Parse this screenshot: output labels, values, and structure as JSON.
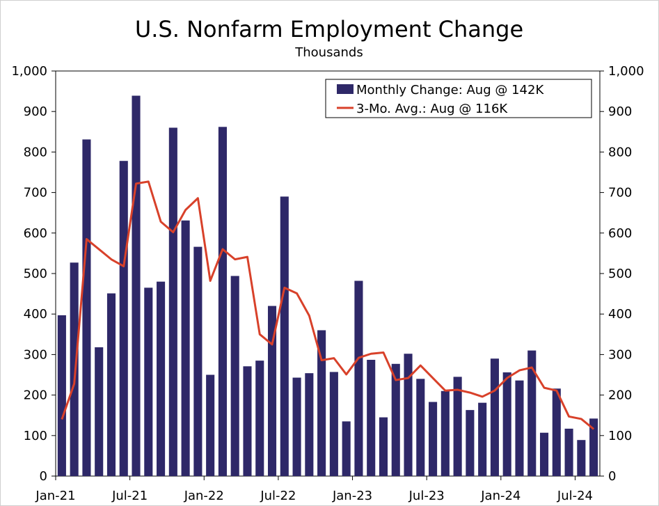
{
  "chart_data": {
    "type": "bar",
    "title": "U.S. Nonfarm Employment Change",
    "subtitle": "Thousands",
    "ylim": [
      0,
      1000
    ],
    "yticks": [
      "1,000",
      "900",
      "800",
      "700",
      "600",
      "500",
      "400",
      "300",
      "200",
      "100",
      "0"
    ],
    "ytick_values": [
      1000,
      900,
      800,
      700,
      600,
      500,
      400,
      300,
      200,
      100,
      0
    ],
    "xtick_labels": [
      "Jan-21",
      "Jul-21",
      "Jan-22",
      "Jul-22",
      "Jan-23",
      "Jul-23",
      "Jan-24",
      "Jul-24"
    ],
    "xtick_months": [
      "2021-01",
      "2021-07",
      "2022-01",
      "2022-07",
      "2023-01",
      "2023-07",
      "2024-01",
      "2024-07"
    ],
    "legend_placement": "top-right",
    "months": [
      "2021-01",
      "2021-02",
      "2021-03",
      "2021-04",
      "2021-05",
      "2021-06",
      "2021-07",
      "2021-08",
      "2021-09",
      "2021-10",
      "2021-11",
      "2021-12",
      "2022-01",
      "2022-02",
      "2022-03",
      "2022-04",
      "2022-05",
      "2022-06",
      "2022-07",
      "2022-08",
      "2022-09",
      "2022-10",
      "2022-11",
      "2022-12",
      "2023-01",
      "2023-02",
      "2023-03",
      "2023-04",
      "2023-05",
      "2023-06",
      "2023-07",
      "2023-08",
      "2023-09",
      "2023-10",
      "2023-11",
      "2023-12",
      "2024-01",
      "2024-02",
      "2024-03",
      "2024-04",
      "2024-05",
      "2024-06",
      "2024-07",
      "2024-08"
    ],
    "series": [
      {
        "name": "Monthly Change: Aug @ 142K",
        "kind": "bar",
        "color": "#2e2868",
        "values": [
          397,
          527,
          831,
          318,
          451,
          778,
          939,
          465,
          480,
          860,
          631,
          566,
          250,
          862,
          494,
          271,
          285,
          420,
          690,
          243,
          254,
          360,
          257,
          135,
          482,
          287,
          145,
          277,
          302,
          240,
          183,
          210,
          245,
          163,
          181,
          290,
          256,
          236,
          310,
          107,
          216,
          117,
          89,
          142
        ]
      },
      {
        "name": "3-Mo. Avg.: Aug @ 116K",
        "kind": "line",
        "color": "#d8412a",
        "values": [
          140,
          228,
          585,
          560,
          535,
          518,
          722,
          727,
          628,
          602,
          657,
          686,
          482,
          560,
          535,
          541,
          350,
          325,
          465,
          451,
          396,
          286,
          291,
          251,
          292,
          302,
          305,
          237,
          242,
          273,
          242,
          211,
          213,
          206,
          196,
          211,
          242,
          261,
          268,
          218,
          211,
          147,
          141,
          116
        ]
      }
    ]
  }
}
